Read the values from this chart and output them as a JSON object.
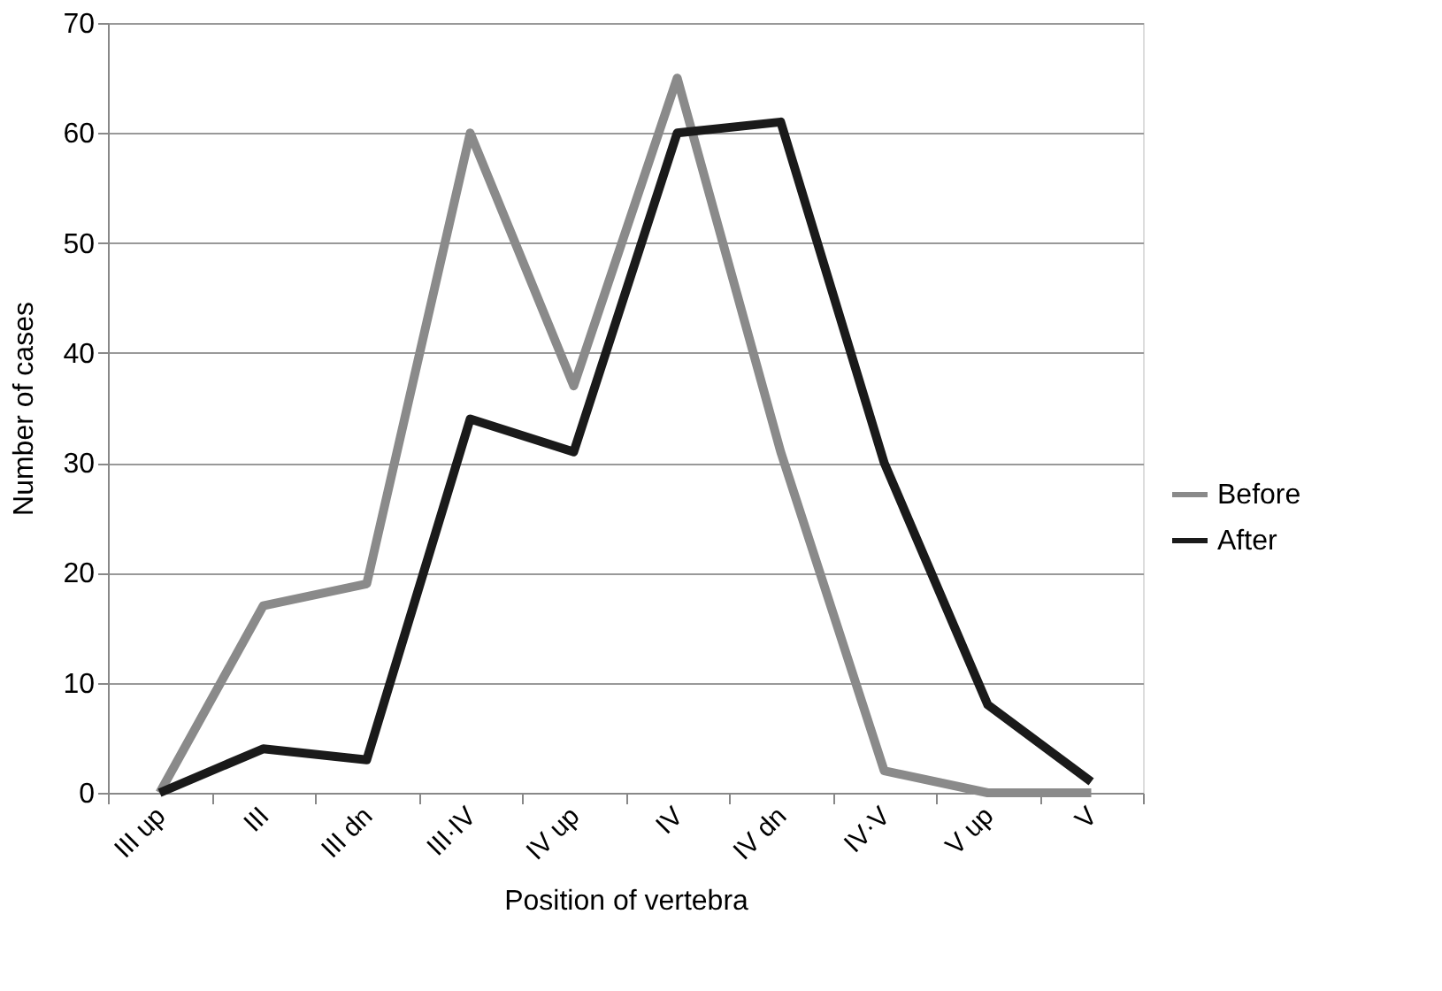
{
  "chart_data": {
    "type": "line",
    "xlabel": "Position of vertebra",
    "ylabel": "Number of cases",
    "categories": [
      "III up",
      "III",
      "III dn",
      "III·IV",
      "IV up",
      "IV",
      "IV dn",
      "IV·V",
      "V up",
      "V"
    ],
    "series": [
      {
        "name": "Before",
        "color": "#8a8a8a",
        "values": [
          0,
          17,
          19,
          60,
          37,
          65,
          31,
          2,
          0,
          0
        ]
      },
      {
        "name": "After",
        "color": "#1a1a1a",
        "values": [
          0,
          4,
          3,
          34,
          31,
          60,
          61,
          30,
          8,
          1
        ]
      }
    ],
    "ylim": [
      0,
      70
    ],
    "yticks": [
      0,
      10,
      20,
      30,
      40,
      50,
      60,
      70
    ],
    "grid": "y",
    "legend": "right",
    "marker": "none",
    "line_style": "solid"
  }
}
